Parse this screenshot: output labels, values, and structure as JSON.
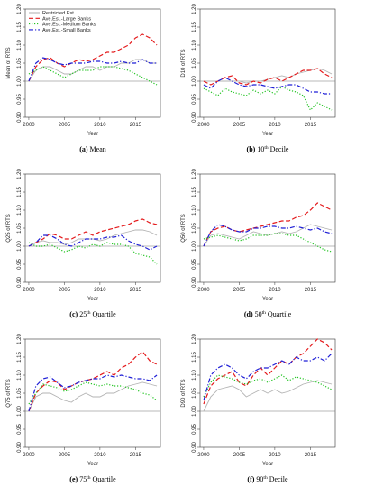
{
  "chart_data": [
    {
      "type": "line",
      "caption_letter": "(a)",
      "caption_base": "Mean",
      "caption_sup": "",
      "caption_tail": "",
      "ylabel": "Mean of RTS",
      "xlabel": "Year",
      "ylim": [
        0.9,
        1.2
      ],
      "xlim": [
        1999.5,
        2018.5
      ],
      "yticks": [
        "0.90",
        "0.95",
        "1.00",
        "1.05",
        "1.10",
        "1.15",
        "1.20"
      ],
      "xticks": [
        "2000",
        "2005",
        "2010",
        "2015"
      ],
      "hline": 1.0,
      "x": [
        2000,
        2001,
        2002,
        2003,
        2004,
        2005,
        2006,
        2007,
        2008,
        2009,
        2010,
        2011,
        2012,
        2013,
        2014,
        2015,
        2016,
        2017,
        2018
      ],
      "legend": [
        "Restricted Est.",
        "Ave.Est.-Large Banks",
        "Ave.Est.-Medium Banks",
        "Ave.Est.-Small Banks"
      ],
      "series": [
        {
          "name": "Restricted Est.",
          "values": [
            1.0,
            1.03,
            1.04,
            1.04,
            1.03,
            1.02,
            1.02,
            1.03,
            1.04,
            1.04,
            1.03,
            1.04,
            1.04,
            1.05,
            1.05,
            1.06,
            1.06,
            1.05,
            1.05
          ]
        },
        {
          "name": "Ave.Est.-Large Banks",
          "values": [
            1.0,
            1.04,
            1.06,
            1.065,
            1.05,
            1.04,
            1.05,
            1.06,
            1.055,
            1.06,
            1.07,
            1.08,
            1.08,
            1.09,
            1.1,
            1.12,
            1.13,
            1.12,
            1.1
          ]
        },
        {
          "name": "Ave.Est.-Medium Banks",
          "values": [
            1.02,
            1.03,
            1.04,
            1.03,
            1.02,
            1.01,
            1.02,
            1.03,
            1.03,
            1.03,
            1.04,
            1.04,
            1.04,
            1.035,
            1.03,
            1.02,
            1.01,
            1.0,
            0.99
          ]
        },
        {
          "name": "Ave.Est.-Small Banks",
          "values": [
            1.0,
            1.05,
            1.065,
            1.06,
            1.05,
            1.045,
            1.05,
            1.05,
            1.05,
            1.055,
            1.055,
            1.05,
            1.05,
            1.055,
            1.05,
            1.05,
            1.06,
            1.05,
            1.05
          ]
        }
      ]
    },
    {
      "type": "line",
      "caption_letter": "(b)",
      "caption_base": "10",
      "caption_sup": "th",
      "caption_tail": "Decile",
      "ylabel": "D10 of RTS",
      "xlabel": "Year",
      "ylim": [
        0.9,
        1.2
      ],
      "xlim": [
        1999.5,
        2018.5
      ],
      "yticks": [
        "0.90",
        "0.95",
        "1.00",
        "1.05",
        "1.10",
        "1.15",
        "1.20"
      ],
      "xticks": [
        "2000",
        "2005",
        "2010",
        "2015"
      ],
      "hline": 1.0,
      "x": [
        2000,
        2001,
        2002,
        2003,
        2004,
        2005,
        2006,
        2007,
        2008,
        2009,
        2010,
        2011,
        2012,
        2013,
        2014,
        2015,
        2016,
        2017,
        2018
      ],
      "legend": [],
      "series": [
        {
          "name": "Restricted Est.",
          "values": [
            1.0,
            1.0,
            1.0,
            1.0,
            1.0,
            1.0,
            0.995,
            1.0,
            1.0,
            1.005,
            1.01,
            1.015,
            1.01,
            1.02,
            1.025,
            1.03,
            1.035,
            1.03,
            1.02
          ]
        },
        {
          "name": "Ave.Est.-Large Banks",
          "values": [
            1.0,
            0.99,
            1.0,
            1.01,
            1.015,
            0.995,
            0.99,
            1.0,
            0.995,
            1.005,
            1.01,
            1.0,
            1.01,
            1.02,
            1.03,
            1.03,
            1.035,
            1.02,
            1.01
          ]
        },
        {
          "name": "Ave.Est.-Medium Banks",
          "values": [
            0.98,
            0.97,
            0.96,
            0.98,
            0.97,
            0.965,
            0.96,
            0.975,
            0.965,
            0.975,
            0.965,
            0.985,
            0.975,
            0.97,
            0.96,
            0.92,
            0.94,
            0.93,
            0.92
          ]
        },
        {
          "name": "Ave.Est.-Small Banks",
          "values": [
            0.99,
            0.98,
            1.0,
            1.01,
            1.0,
            0.99,
            0.985,
            0.99,
            0.99,
            0.985,
            0.98,
            0.985,
            0.99,
            0.99,
            0.98,
            0.97,
            0.97,
            0.965,
            0.965
          ]
        }
      ]
    },
    {
      "type": "line",
      "caption_letter": "(c)",
      "caption_base": "25",
      "caption_sup": "th",
      "caption_tail": "Quartile",
      "ylabel": "Q25 of RTS",
      "xlabel": "Year",
      "ylim": [
        0.9,
        1.2
      ],
      "xlim": [
        1999.5,
        2018.5
      ],
      "yticks": [
        "0.90",
        "0.95",
        "1.00",
        "1.05",
        "1.10",
        "1.15",
        "1.20"
      ],
      "xticks": [
        "2000",
        "2005",
        "2010",
        "2015"
      ],
      "hline": 1.0,
      "x": [
        2000,
        2001,
        2002,
        2003,
        2004,
        2005,
        2006,
        2007,
        2008,
        2009,
        2010,
        2011,
        2012,
        2013,
        2014,
        2015,
        2016,
        2017,
        2018
      ],
      "legend": [],
      "series": [
        {
          "name": "Restricted Est.",
          "values": [
            1.0,
            1.01,
            1.015,
            1.01,
            1.01,
            1.005,
            1.01,
            1.02,
            1.02,
            1.02,
            1.015,
            1.02,
            1.03,
            1.035,
            1.04,
            1.045,
            1.045,
            1.04,
            1.03
          ]
        },
        {
          "name": "Ave.Est.-Large Banks",
          "values": [
            1.0,
            1.01,
            1.02,
            1.035,
            1.03,
            1.02,
            1.02,
            1.03,
            1.04,
            1.03,
            1.04,
            1.045,
            1.05,
            1.055,
            1.06,
            1.07,
            1.075,
            1.065,
            1.06
          ]
        },
        {
          "name": "Ave.Est.-Medium Banks",
          "values": [
            1.01,
            1.0,
            1.0,
            1.005,
            0.995,
            0.985,
            0.99,
            1.0,
            0.995,
            1.005,
            1.0,
            1.01,
            1.005,
            1.005,
            1.0,
            0.98,
            0.975,
            0.97,
            0.95
          ]
        },
        {
          "name": "Ave.Est.-Small Banks",
          "values": [
            1.0,
            1.01,
            1.03,
            1.03,
            1.02,
            1.005,
            1.0,
            1.01,
            1.02,
            1.02,
            1.02,
            1.025,
            1.025,
            1.03,
            1.015,
            1.005,
            1.0,
            0.99,
            1.0
          ]
        }
      ]
    },
    {
      "type": "line",
      "caption_letter": "(d)",
      "caption_base": "50",
      "caption_sup": "th",
      "caption_tail": "Quartile",
      "ylabel": "Q50 of RTS",
      "xlabel": "Year",
      "ylim": [
        0.9,
        1.2
      ],
      "xlim": [
        1999.5,
        2018.5
      ],
      "yticks": [
        "0.90",
        "0.95",
        "1.00",
        "1.05",
        "1.10",
        "1.15",
        "1.20"
      ],
      "xticks": [
        "2000",
        "2005",
        "2010",
        "2015"
      ],
      "hline": 1.0,
      "x": [
        2000,
        2001,
        2002,
        2003,
        2004,
        2005,
        2006,
        2007,
        2008,
        2009,
        2010,
        2011,
        2012,
        2013,
        2014,
        2015,
        2016,
        2017,
        2018
      ],
      "legend": [],
      "series": [
        {
          "name": "Restricted Est.",
          "values": [
            1.0,
            1.03,
            1.035,
            1.03,
            1.025,
            1.02,
            1.03,
            1.04,
            1.035,
            1.03,
            1.035,
            1.04,
            1.035,
            1.04,
            1.05,
            1.06,
            1.055,
            1.05,
            1.045
          ]
        },
        {
          "name": "Ave.Est.-Large Banks",
          "values": [
            1.0,
            1.04,
            1.05,
            1.055,
            1.045,
            1.04,
            1.045,
            1.05,
            1.055,
            1.06,
            1.065,
            1.07,
            1.07,
            1.08,
            1.085,
            1.1,
            1.12,
            1.11,
            1.1
          ]
        },
        {
          "name": "Ave.Est.-Medium Banks",
          "values": [
            1.02,
            1.025,
            1.03,
            1.025,
            1.02,
            1.015,
            1.02,
            1.03,
            1.03,
            1.03,
            1.035,
            1.035,
            1.03,
            1.03,
            1.02,
            1.01,
            1.0,
            0.99,
            0.985
          ]
        },
        {
          "name": "Ave.Est.-Small Banks",
          "values": [
            1.0,
            1.04,
            1.06,
            1.055,
            1.045,
            1.04,
            1.04,
            1.05,
            1.05,
            1.055,
            1.055,
            1.05,
            1.05,
            1.055,
            1.05,
            1.045,
            1.05,
            1.04,
            1.035
          ]
        }
      ]
    },
    {
      "type": "line",
      "caption_letter": "(e)",
      "caption_base": "75",
      "caption_sup": "th",
      "caption_tail": "Quartile",
      "ylabel": "Q75 of RTS",
      "xlabel": "Year",
      "ylim": [
        0.9,
        1.2
      ],
      "xlim": [
        1999.5,
        2018.5
      ],
      "yticks": [
        "0.90",
        "0.95",
        "1.00",
        "1.05",
        "1.10",
        "1.15",
        "1.20"
      ],
      "xticks": [
        "2000",
        "2005",
        "2010",
        "2015"
      ],
      "hline": 1.0,
      "x": [
        2000,
        2001,
        2002,
        2003,
        2004,
        2005,
        2006,
        2007,
        2008,
        2009,
        2010,
        2011,
        2012,
        2013,
        2014,
        2015,
        2016,
        2017,
        2018
      ],
      "legend": [],
      "series": [
        {
          "name": "Restricted Est.",
          "values": [
            1.0,
            1.04,
            1.05,
            1.05,
            1.04,
            1.03,
            1.025,
            1.04,
            1.05,
            1.04,
            1.04,
            1.05,
            1.05,
            1.06,
            1.07,
            1.075,
            1.08,
            1.075,
            1.07
          ]
        },
        {
          "name": "Ave.Est.-Large Banks",
          "values": [
            1.0,
            1.05,
            1.07,
            1.085,
            1.08,
            1.06,
            1.07,
            1.08,
            1.085,
            1.09,
            1.1,
            1.11,
            1.1,
            1.12,
            1.13,
            1.15,
            1.165,
            1.14,
            1.13
          ]
        },
        {
          "name": "Ave.Est.-Medium Banks",
          "values": [
            1.02,
            1.05,
            1.075,
            1.07,
            1.065,
            1.055,
            1.06,
            1.07,
            1.08,
            1.075,
            1.07,
            1.075,
            1.07,
            1.07,
            1.065,
            1.06,
            1.05,
            1.045,
            1.03
          ]
        },
        {
          "name": "Ave.Est.-Small Banks",
          "values": [
            1.0,
            1.07,
            1.09,
            1.095,
            1.08,
            1.065,
            1.07,
            1.08,
            1.085,
            1.09,
            1.09,
            1.1,
            1.095,
            1.1,
            1.095,
            1.09,
            1.09,
            1.085,
            1.1
          ]
        }
      ]
    },
    {
      "type": "line",
      "caption_letter": "(f)",
      "caption_base": "90",
      "caption_sup": "th",
      "caption_tail": "Decile",
      "ylabel": "D90 of RTS",
      "xlabel": "Year",
      "ylim": [
        0.9,
        1.2
      ],
      "xlim": [
        1999.5,
        2018.5
      ],
      "yticks": [
        "0.90",
        "0.95",
        "1.00",
        "1.05",
        "1.10",
        "1.15",
        "1.20"
      ],
      "xticks": [
        "2000",
        "2005",
        "2010",
        "2015"
      ],
      "hline": 1.0,
      "x": [
        2000,
        2001,
        2002,
        2003,
        2004,
        2005,
        2006,
        2007,
        2008,
        2009,
        2010,
        2011,
        2012,
        2013,
        2014,
        2015,
        2016,
        2017,
        2018
      ],
      "legend": [],
      "series": [
        {
          "name": "Restricted Est.",
          "values": [
            1.0,
            1.04,
            1.06,
            1.065,
            1.07,
            1.06,
            1.04,
            1.05,
            1.06,
            1.05,
            1.06,
            1.05,
            1.055,
            1.065,
            1.075,
            1.08,
            1.085,
            1.08,
            1.075
          ]
        },
        {
          "name": "Ave.Est.-Large Banks",
          "values": [
            1.02,
            1.07,
            1.09,
            1.1,
            1.11,
            1.08,
            1.07,
            1.1,
            1.12,
            1.1,
            1.12,
            1.14,
            1.13,
            1.15,
            1.16,
            1.18,
            1.2,
            1.19,
            1.17
          ]
        },
        {
          "name": "Ave.Est.-Medium Banks",
          "values": [
            1.04,
            1.08,
            1.1,
            1.095,
            1.09,
            1.08,
            1.075,
            1.085,
            1.09,
            1.08,
            1.09,
            1.1,
            1.085,
            1.095,
            1.09,
            1.085,
            1.08,
            1.07,
            1.06
          ]
        },
        {
          "name": "Ave.Est.-Small Banks",
          "values": [
            1.03,
            1.1,
            1.12,
            1.13,
            1.12,
            1.1,
            1.09,
            1.11,
            1.12,
            1.12,
            1.13,
            1.14,
            1.13,
            1.15,
            1.14,
            1.14,
            1.15,
            1.14,
            1.16
          ]
        }
      ]
    }
  ],
  "styles": {
    "colors": [
      "#b3b3b3",
      "#e41a1c",
      "#22c422",
      "#1f1fd6"
    ],
    "dash": [
      "",
      "5,2.5",
      "1.2,1.8",
      "5,2,1.2,2"
    ]
  }
}
